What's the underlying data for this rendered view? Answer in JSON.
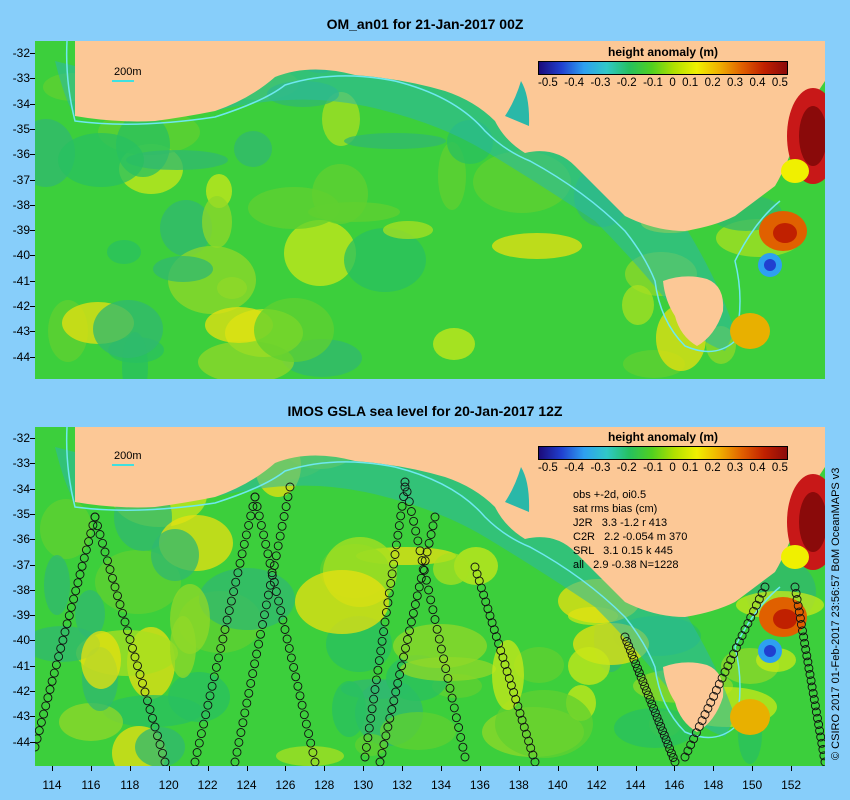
{
  "top_panel": {
    "title": "OM_an01 for 21-Jan-2017 00Z",
    "depth_label": "200m",
    "colorbar": {
      "title": "height anomaly (m)",
      "ticks": [
        "-0.5",
        "-0.4",
        "-0.3",
        "-0.2",
        "-0.1",
        "0",
        "0.1",
        "0.2",
        "0.3",
        "0.4",
        "0.5"
      ]
    }
  },
  "bottom_panel": {
    "title": "IMOS GSLA sea level  for 20-Jan-2017 12Z",
    "depth_label": "200m",
    "colorbar": {
      "title": "height anomaly (m)",
      "ticks": [
        "-0.5",
        "-0.4",
        "-0.3",
        "-0.2",
        "-0.1",
        "0",
        "0.1",
        "0.2",
        "0.3",
        "0.4",
        "0.5"
      ]
    },
    "stats": [
      "obs +-2d, oi0.5",
      "sat rms bias (cm)",
      "J2R   3.3 -1.2 r 413",
      "C2R   2.2 -0.054 m 370",
      "SRL   3.1 0.15 k 445",
      "all   2.9 -0.38 N=1228"
    ]
  },
  "axes": {
    "top_lat_labels": [
      "-32",
      "-33",
      "-34",
      "-35",
      "-36",
      "-37",
      "-38",
      "-39",
      "-40",
      "-41",
      "-42",
      "-43",
      "-44"
    ],
    "bottom_lat_labels": [
      "-32",
      "-33",
      "-34",
      "-35",
      "-36",
      "-37",
      "-38",
      "-39",
      "-40",
      "-41",
      "-42",
      "-43",
      "-44"
    ],
    "lon_labels": [
      "114",
      "116",
      "118",
      "120",
      "122",
      "124",
      "126",
      "128",
      "130",
      "132",
      "134",
      "136",
      "138",
      "140",
      "142",
      "144",
      "146",
      "148",
      "150",
      "152"
    ]
  },
  "credit": "© CSIRO 2017  01-Feb-2017 23:56:57 BoM OceanMAPS v3",
  "colors": {
    "sky": "#87cefa",
    "land": "#fcc896",
    "ocean_base": "#3ccf3c",
    "shelf": "#2ab8a8",
    "contour": "#6ee8f0",
    "track": "#000000"
  }
}
